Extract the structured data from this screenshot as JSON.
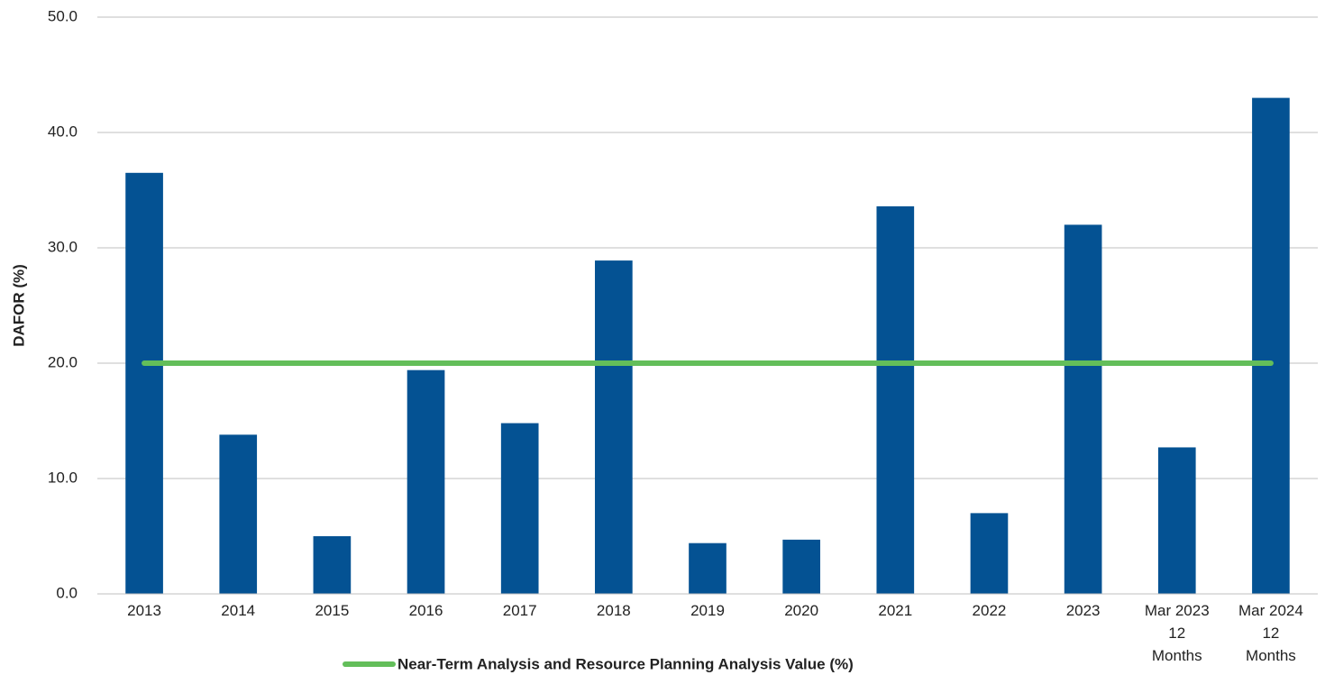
{
  "chart_data": {
    "type": "bar",
    "y_label": "DAFOR (%)",
    "categories": [
      "2013",
      "2014",
      "2015",
      "2016",
      "2017",
      "2018",
      "2019",
      "2020",
      "2021",
      "2022",
      "2023",
      "Mar 2023\n12\nMonths",
      "Mar 2024\n12\nMonths"
    ],
    "series": [
      {
        "type": "bar",
        "color": "#045293",
        "values": [
          36.5,
          13.8,
          5.0,
          19.4,
          14.8,
          28.9,
          4.4,
          4.7,
          33.6,
          7.0,
          32.0,
          12.7,
          43.0
        ]
      },
      {
        "type": "line",
        "name": "Near-Term Analysis and Resource Planning Analysis Value (%)",
        "color": "#63be5a",
        "values": [
          20,
          20,
          20,
          20,
          20,
          20,
          20,
          20,
          20,
          20,
          20,
          20,
          20
        ]
      }
    ],
    "ylim": [
      0,
      50
    ],
    "yticks": [
      {
        "value": 0,
        "label": "0.0"
      },
      {
        "value": 10,
        "label": "10.0"
      },
      {
        "value": 20,
        "label": "20.0"
      },
      {
        "value": 30,
        "label": "30.0"
      },
      {
        "value": 40,
        "label": "40.0"
      },
      {
        "value": 50,
        "label": "50.0"
      }
    ],
    "grid": true,
    "legend": "bottom"
  }
}
